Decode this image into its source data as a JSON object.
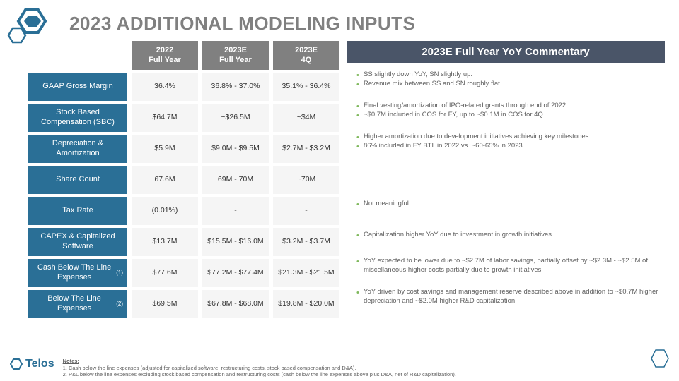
{
  "title": "2023 ADDITIONAL MODELING INPUTS",
  "colors": {
    "title_color": "#808080",
    "row_label_bg": "#2a6f96",
    "col_hdr_bg": "#808080",
    "cell_bg": "#f5f5f5",
    "comm_hdr_bg": "#4a5568",
    "bullet_color": "#7fb85c"
  },
  "columns": [
    {
      "l1": "2022",
      "l2": "Full Year"
    },
    {
      "l1": "2023E",
      "l2": "Full Year"
    },
    {
      "l1": "2023E",
      "l2": "4Q"
    }
  ],
  "commentary_header": "2023E Full Year YoY Commentary",
  "rows": [
    {
      "label": "GAAP Gross Margin",
      "cells": [
        "36.4%",
        "36.8% - 37.0%",
        "35.1% - 36.4%"
      ],
      "comments": [
        "SS slightly down YoY, SN slightly up.",
        "Revenue mix between SS and SN roughly flat"
      ]
    },
    {
      "label": "Stock Based Compensation (SBC)",
      "cells": [
        "$64.7M",
        "~$26.5M",
        "~$4M"
      ],
      "comments": [
        "Final vesting/amortization of IPO-related grants through end of 2022",
        "~$0.7M included in COS for FY, up to ~$0.1M in COS for 4Q"
      ]
    },
    {
      "label": "Depreciation & Amortization",
      "cells": [
        "$5.9M",
        "$9.0M - $9.5M",
        "$2.7M - $3.2M"
      ],
      "comments": [
        "Higher amortization due to development initiatives achieving key milestones",
        "86% included in FY BTL in 2022 vs. ~60-65% in 2023"
      ]
    },
    {
      "label": "Share Count",
      "cells": [
        "67.6M",
        "69M - 70M",
        "~70M"
      ],
      "comments": []
    },
    {
      "label": "Tax Rate",
      "cells": [
        "(0.01%)",
        "-",
        "-"
      ],
      "comments": [
        "Not meaningful"
      ]
    },
    {
      "label": "CAPEX & Capitalized Software",
      "cells": [
        "$13.7M",
        "$15.5M - $16.0M",
        "$3.2M - $3.7M"
      ],
      "comments": [
        "Capitalization higher YoY due to investment in growth initiatives"
      ]
    },
    {
      "label": "Cash Below The Line Expenses",
      "sup": "(1)",
      "cells": [
        "$77.6M",
        "$77.2M - $77.4M",
        "$21.3M - $21.5M"
      ],
      "comments": [
        "YoY expected to be lower due to ~$2.7M of labor savings, partially offset by ~$2.3M - ~$2.5M of miscellaneous higher costs partially due to growth initiatives"
      ]
    },
    {
      "label": "Below The Line Expenses",
      "sup": "(2)",
      "cells": [
        "$69.5M",
        "$67.8M - $68.0M",
        "$19.8M - $20.0M"
      ],
      "comments": [
        "YoY driven by cost savings and management reserve described above in addition to ~$0.7M higher depreciation and ~$2.0M higher R&D capitalization"
      ]
    }
  ],
  "footer": {
    "brand": "Telos",
    "notes_title": "Notes:",
    "notes": [
      "Cash below the line expenses (adjusted for capitalized software, restructuring costs, stock based compensation and D&A).",
      "P&L below the line expenses excluding stock based compensation and restructuring costs (cash below the line expenses above plus D&A, net of R&D capitalization)."
    ]
  }
}
